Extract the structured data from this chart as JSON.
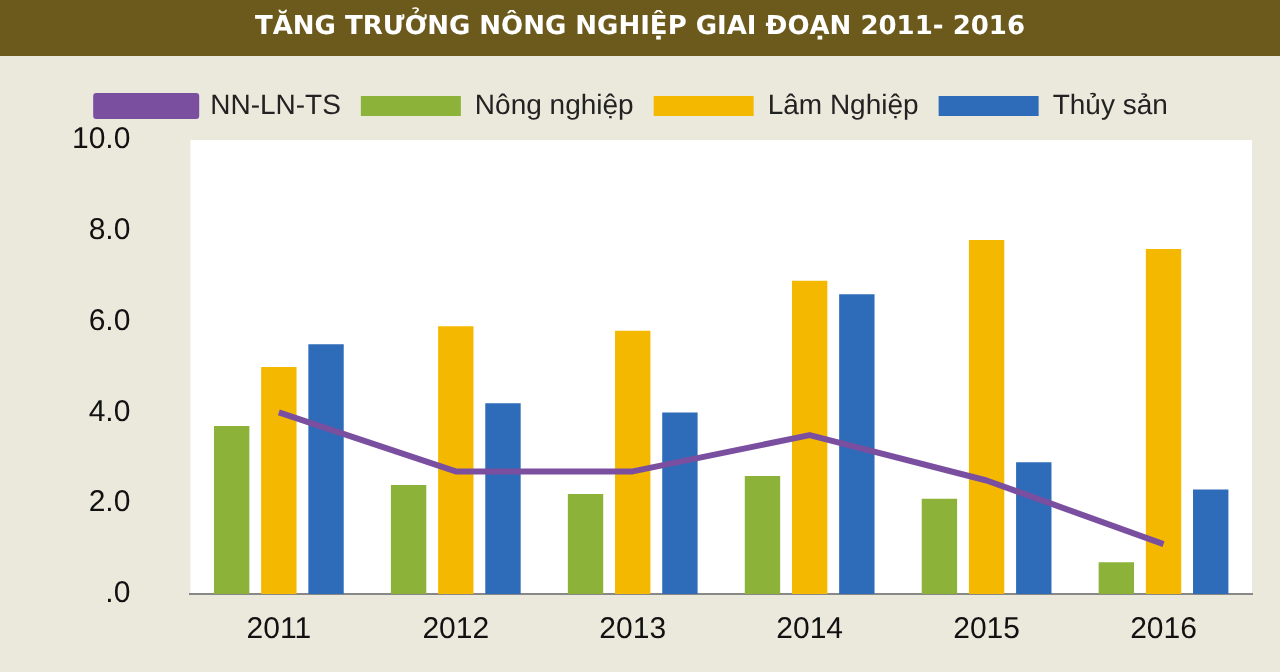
{
  "chart_data": {
    "type": "bar",
    "title": "TĂNG TRƯỞNG NÔNG NGHIỆP GIAI ĐOẠN 2011- 2016",
    "categories": [
      "2011",
      "2012",
      "2013",
      "2014",
      "2015",
      "2016"
    ],
    "series": [
      {
        "name": "Nông nghiệp",
        "color": "#8cb23a",
        "values": [
          3.7,
          2.4,
          2.2,
          2.6,
          2.1,
          0.7
        ]
      },
      {
        "name": "Lâm Nghiệp",
        "color": "#f5b800",
        "values": [
          5.0,
          5.9,
          5.8,
          6.9,
          7.8,
          7.6
        ]
      },
      {
        "name": "Thủy sản",
        "color": "#2e6bb8",
        "values": [
          5.5,
          4.2,
          4.0,
          6.6,
          2.9,
          2.3
        ]
      },
      {
        "name": "NN-LN-TS",
        "color": "#7a4fa0",
        "type": "line",
        "marker": "none",
        "values": [
          4.0,
          2.7,
          2.7,
          3.5,
          2.5,
          1.1
        ]
      }
    ],
    "ylim": [
      0,
      10
    ],
    "yticks": [
      {
        "value": 0,
        "label": ".0"
      },
      {
        "value": 2,
        "label": "2.0"
      },
      {
        "value": 4,
        "label": "4.0"
      },
      {
        "value": 6,
        "label": "6.0"
      },
      {
        "value": 8,
        "label": "8.0"
      },
      {
        "value": 10,
        "label": "10.0"
      }
    ],
    "grid": false,
    "legend": "top"
  }
}
